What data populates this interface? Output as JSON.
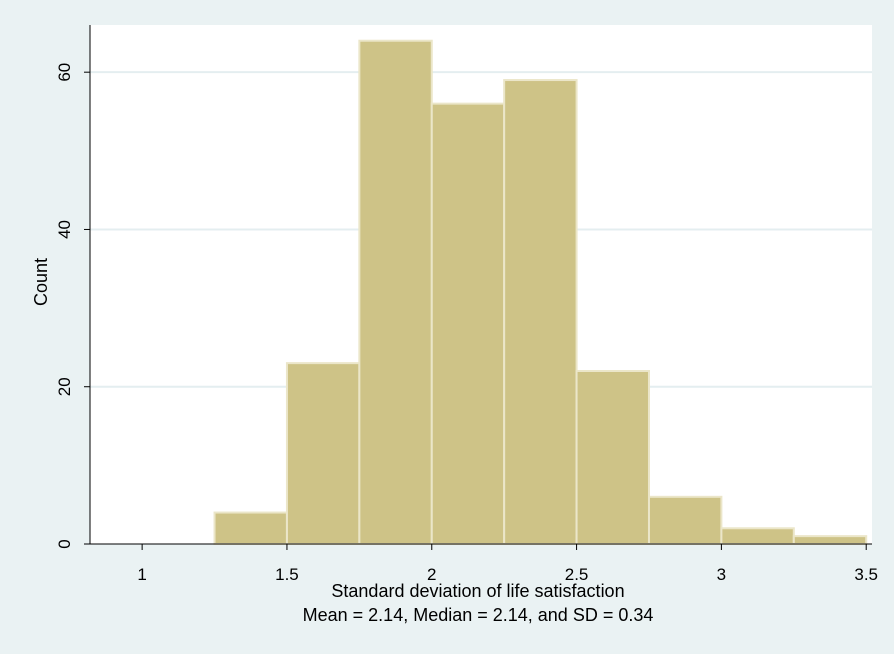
{
  "chart_data": {
    "type": "bar",
    "subtype": "histogram",
    "xlabel": "Standard deviation of life satisfaction",
    "subtitle": "Mean = 2.14, Median = 2.14, and SD = 0.34",
    "ylabel": "Count",
    "bin_width": 0.25,
    "bins": [
      {
        "start": 1.25,
        "end": 1.5,
        "count": 4
      },
      {
        "start": 1.5,
        "end": 1.75,
        "count": 23
      },
      {
        "start": 1.75,
        "end": 2.0,
        "count": 64
      },
      {
        "start": 2.0,
        "end": 2.25,
        "count": 56
      },
      {
        "start": 2.25,
        "end": 2.5,
        "count": 59
      },
      {
        "start": 2.5,
        "end": 2.75,
        "count": 22
      },
      {
        "start": 2.75,
        "end": 3.0,
        "count": 6
      },
      {
        "start": 3.0,
        "end": 3.25,
        "count": 2
      },
      {
        "start": 3.25,
        "end": 3.5,
        "count": 1
      }
    ],
    "xlim": [
      0.82,
      3.52
    ],
    "ylim": [
      0,
      66
    ],
    "xticks": [
      1,
      1.5,
      2,
      2.5,
      3,
      3.5
    ],
    "xtick_labels": [
      "1",
      "1.5",
      "2",
      "2.5",
      "3",
      "3.5"
    ],
    "yticks": [
      0,
      20,
      40,
      60
    ],
    "ytick_labels": [
      "0",
      "20",
      "40",
      "60"
    ],
    "grid": true,
    "colors": {
      "background": "#eaf2f3",
      "plot_background": "#ffffff",
      "bar_fill": "#cec387",
      "bar_edge": "#ebe6c9",
      "grid": "#e4eef0",
      "axis": "#000000"
    }
  }
}
